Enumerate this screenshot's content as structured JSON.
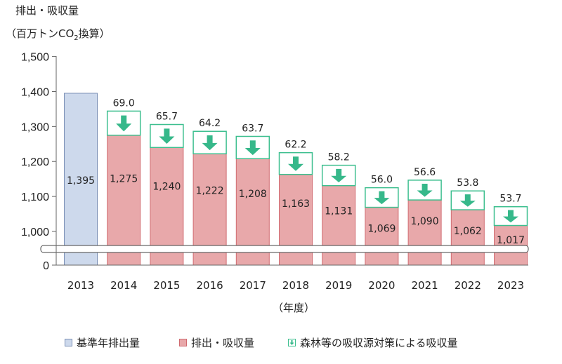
{
  "header": {
    "title": "排出・吸収量",
    "unit_prefix": "（百万トンCO",
    "unit_sub": "2",
    "unit_suffix": "換算）"
  },
  "xlabel": "（年度）",
  "legend": {
    "baseline": "基準年排出量",
    "net": "排出・吸収量",
    "forest": "森林等の吸収源対策による吸収量"
  },
  "colors": {
    "baseline_fill": "#cdd9ec",
    "baseline_stroke": "#7a8fb5",
    "net_fill": "#e8a8aa",
    "net_stroke": "#d06b71",
    "forest_fill": "#ffffff",
    "forest_stroke": "#3dbf8f",
    "arrow": "#36b88a",
    "axis": "#666666"
  },
  "chart_data": {
    "type": "bar",
    "categories": [
      "2013",
      "2014",
      "2015",
      "2016",
      "2017",
      "2018",
      "2019",
      "2020",
      "2021",
      "2022",
      "2023"
    ],
    "series": [
      {
        "name": "基準年排出量",
        "values": [
          1395,
          null,
          null,
          null,
          null,
          null,
          null,
          null,
          null,
          null,
          null
        ]
      },
      {
        "name": "排出・吸収量",
        "values": [
          null,
          1275,
          1240,
          1222,
          1208,
          1163,
          1131,
          1069,
          1090,
          1062,
          1017
        ]
      },
      {
        "name": "森林等の吸収源対策による吸収量",
        "values": [
          null,
          69.0,
          65.7,
          64.2,
          63.7,
          62.2,
          58.2,
          56.0,
          56.6,
          53.8,
          53.7
        ]
      }
    ],
    "value_labels": [
      "1,395",
      "1,275",
      "1,240",
      "1,222",
      "1,208",
      "1,163",
      "1,131",
      "1,069",
      "1,090",
      "1,062",
      "1,017"
    ],
    "absorption_labels": [
      "",
      "69.0",
      "65.7",
      "64.2",
      "63.7",
      "62.2",
      "58.2",
      "56.0",
      "56.6",
      "53.8",
      "53.7"
    ],
    "yticks": [
      0,
      1000,
      1100,
      1200,
      1300,
      1400,
      1500
    ],
    "ytick_labels": [
      "0",
      "1,000",
      "1,100",
      "1,200",
      "1,300",
      "1,400",
      "1,500"
    ],
    "ylim": [
      0,
      1500
    ],
    "axis_break": true,
    "grid": false
  }
}
